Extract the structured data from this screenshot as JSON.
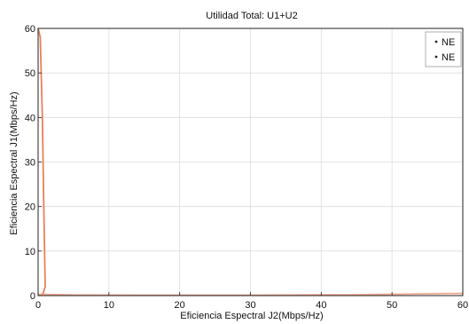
{
  "chart_data": {
    "type": "line",
    "title": "Utilidad Total: U1+U2",
    "xlabel": "Eficiencia Espectral J2(Mbps/Hz)",
    "ylabel": "Eficiencia Espectral J1(Mbps/Hz)",
    "xlim": [
      0,
      60
    ],
    "ylim": [
      0,
      60
    ],
    "xticks": [
      0,
      10,
      20,
      30,
      40,
      50,
      60
    ],
    "yticks": [
      0,
      10,
      20,
      30,
      40,
      50,
      60
    ],
    "grid": true,
    "legend_position": "top-right",
    "series": [
      {
        "name": "NE",
        "color": "#e8805a",
        "x": [
          0,
          0.3,
          0.6,
          0.8,
          1.0,
          0.7,
          0.4,
          0.2,
          0
        ],
        "y": [
          60,
          58,
          40,
          20,
          2,
          0.5,
          0.2,
          0.1,
          0
        ]
      },
      {
        "name": "NE",
        "color": "#f0a890",
        "x": [
          0,
          5,
          15,
          30,
          45,
          60
        ],
        "y": [
          0.3,
          0.15,
          0.1,
          0.1,
          0.2,
          0.5
        ]
      }
    ]
  }
}
